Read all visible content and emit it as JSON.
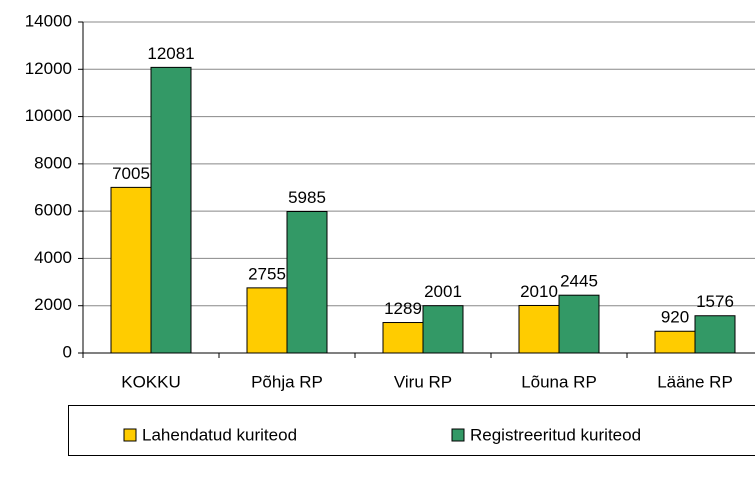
{
  "chart_data": {
    "type": "bar",
    "categories": [
      "KOKKU",
      "Põhja RP",
      "Viru RP",
      "Lõuna RP",
      "Lääne RP"
    ],
    "series": [
      {
        "name": "Lahendatud kuriteod",
        "color": "#ffcc00",
        "values": [
          7005,
          2755,
          1289,
          2010,
          920
        ]
      },
      {
        "name": "Registreeritud kuriteod",
        "color": "#339966",
        "values": [
          12081,
          5985,
          2001,
          2445,
          1576
        ]
      }
    ],
    "ylim": [
      0,
      14000
    ],
    "yticks": [
      0,
      2000,
      4000,
      6000,
      8000,
      10000,
      12000,
      14000
    ],
    "grid": true,
    "legend": "bottom"
  }
}
